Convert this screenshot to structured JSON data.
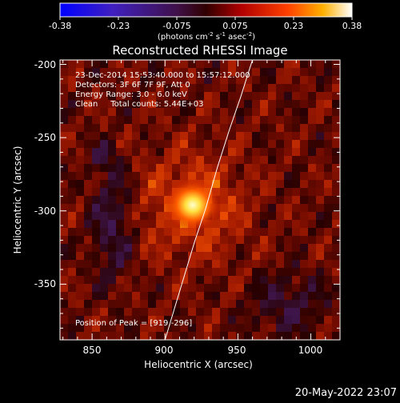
{
  "colorbar": {
    "tick_labels": [
      "-0.38",
      "-0.23",
      "-0.075",
      "0.075",
      "0.23",
      "0.38"
    ],
    "range": [
      -0.38,
      0.38
    ],
    "units": {
      "base": "(photons cm",
      "exp1": "-2",
      "mid": " s",
      "exp2": "-1",
      "end": " asec",
      "exp3": "-2",
      "close": ")"
    }
  },
  "chart_data": {
    "type": "heatmap",
    "title": "Reconstructed RHESSI Image",
    "xlabel": "Heliocentric X (arcsec)",
    "ylabel": "Heliocentric Y (arcsec)",
    "xlim": [
      828,
      1020
    ],
    "ylim": [
      -388,
      -197
    ],
    "x_ticks": [
      "850",
      "900",
      "950",
      "1000"
    ],
    "y_ticks": [
      "-200",
      "-250",
      "-300",
      "-350"
    ],
    "annotations": [
      "23-Dec-2014 15:53:40.000 to 15:57:12.000",
      "Detectors: 3F 6F 7F 9F, Att 0",
      "Energy Range: 3.0 - 6.0 keV",
      "Clean     Total counts: 5.44E+03"
    ],
    "peak_label": "Position of Peak = [919,-296]",
    "peak": [
      919,
      -296
    ],
    "limb_curve": [
      [
        900,
        -388
      ],
      [
        910,
        -355
      ],
      [
        920,
        -322
      ],
      [
        928,
        -298
      ],
      [
        936,
        -270
      ],
      [
        944,
        -245
      ],
      [
        952,
        -222
      ],
      [
        958,
        -203
      ],
      [
        960,
        -197
      ]
    ]
  },
  "footer": {
    "date": "20-May-2022 23:07"
  }
}
